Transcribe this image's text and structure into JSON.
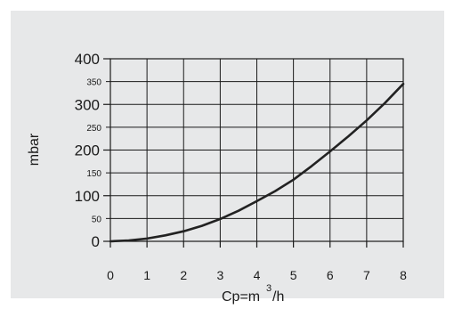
{
  "chart_data": {
    "type": "line",
    "ylabel": "mbar",
    "xlabel_prefix": "Cp=m",
    "xlabel_sup": "3",
    "xlabel_suffix": "/h",
    "xlim": [
      0,
      8
    ],
    "ylim": [
      0,
      400
    ],
    "grid": true,
    "x_ticks": [
      "0",
      "1",
      "2",
      "3",
      "4",
      "5",
      "6",
      "7",
      "8"
    ],
    "y_ticks_major": [
      "0",
      "100",
      "200",
      "300",
      "400"
    ],
    "y_ticks_minor": [
      "50",
      "150",
      "250",
      "350"
    ],
    "series": [
      {
        "x": [
          0,
          0.5,
          1,
          1.5,
          2,
          2.5,
          3,
          3.5,
          4,
          4.5,
          5,
          5.5,
          6,
          6.5,
          7,
          7.5,
          8
        ],
        "y": [
          0,
          2,
          6,
          13,
          22,
          34,
          49,
          67,
          88,
          110,
          135,
          165,
          197,
          230,
          265,
          303,
          345
        ]
      }
    ],
    "colors": {
      "line": "#222222",
      "grid": "#1a1a1a",
      "panel": "#e7e8e9"
    }
  }
}
